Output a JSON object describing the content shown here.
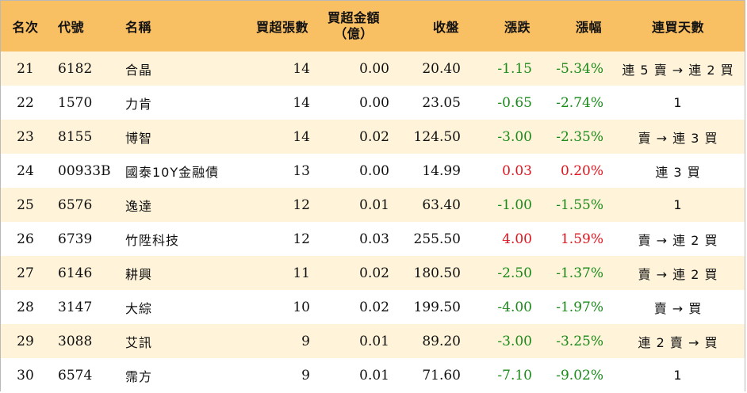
{
  "colors": {
    "header_bg": "#f9bf63",
    "stripe_bg": "#fff3d9",
    "down_color": "#1a8a1a",
    "up_color": "#e0141e"
  },
  "headers": {
    "rank": "名次",
    "code": "代號",
    "name": "名稱",
    "net_buy_lots": "買超張數",
    "net_buy_amount_line1": "買超金額",
    "net_buy_amount_line2": "（億）",
    "close": "收盤",
    "change": "漲跌",
    "change_pct": "漲幅",
    "consecutive_days": "連買天數"
  },
  "rows": [
    {
      "rank": "21",
      "code": "6182",
      "name": "合晶",
      "net_buy_lots": "14",
      "net_buy_amount": "0.00",
      "close": "20.40",
      "change": "-1.15",
      "change_pct": "-5.34%",
      "direction": "down",
      "consecutive_days": "連 5 賣 → 連 2 買"
    },
    {
      "rank": "22",
      "code": "1570",
      "name": "力肯",
      "net_buy_lots": "14",
      "net_buy_amount": "0.00",
      "close": "23.05",
      "change": "-0.65",
      "change_pct": "-2.74%",
      "direction": "down",
      "consecutive_days": "1"
    },
    {
      "rank": "23",
      "code": "8155",
      "name": "博智",
      "net_buy_lots": "14",
      "net_buy_amount": "0.02",
      "close": "124.50",
      "change": "-3.00",
      "change_pct": "-2.35%",
      "direction": "down",
      "consecutive_days": "賣 → 連 3 買"
    },
    {
      "rank": "24",
      "code": "00933B",
      "name": "國泰10Y金融債",
      "net_buy_lots": "13",
      "net_buy_amount": "0.00",
      "close": "14.99",
      "change": "0.03",
      "change_pct": "0.20%",
      "direction": "up",
      "consecutive_days": "連 3 買"
    },
    {
      "rank": "25",
      "code": "6576",
      "name": "逸達",
      "net_buy_lots": "12",
      "net_buy_amount": "0.01",
      "close": "63.40",
      "change": "-1.00",
      "change_pct": "-1.55%",
      "direction": "down",
      "consecutive_days": "1"
    },
    {
      "rank": "26",
      "code": "6739",
      "name": "竹陞科技",
      "net_buy_lots": "12",
      "net_buy_amount": "0.03",
      "close": "255.50",
      "change": "4.00",
      "change_pct": "1.59%",
      "direction": "up",
      "consecutive_days": "賣 → 連 2 買"
    },
    {
      "rank": "27",
      "code": "6146",
      "name": "耕興",
      "net_buy_lots": "11",
      "net_buy_amount": "0.02",
      "close": "180.50",
      "change": "-2.50",
      "change_pct": "-1.37%",
      "direction": "down",
      "consecutive_days": "賣 → 連 2 買"
    },
    {
      "rank": "28",
      "code": "3147",
      "name": "大綜",
      "net_buy_lots": "10",
      "net_buy_amount": "0.02",
      "close": "199.50",
      "change": "-4.00",
      "change_pct": "-1.97%",
      "direction": "down",
      "consecutive_days": "賣 → 買"
    },
    {
      "rank": "29",
      "code": "3088",
      "name": "艾訊",
      "net_buy_lots": "9",
      "net_buy_amount": "0.01",
      "close": "89.20",
      "change": "-3.00",
      "change_pct": "-3.25%",
      "direction": "down",
      "consecutive_days": "連 2 賣 → 買"
    },
    {
      "rank": "30",
      "code": "6574",
      "name": "霈方",
      "net_buy_lots": "9",
      "net_buy_amount": "0.01",
      "close": "71.60",
      "change": "-7.10",
      "change_pct": "-9.02%",
      "direction": "down",
      "consecutive_days": "1"
    }
  ]
}
